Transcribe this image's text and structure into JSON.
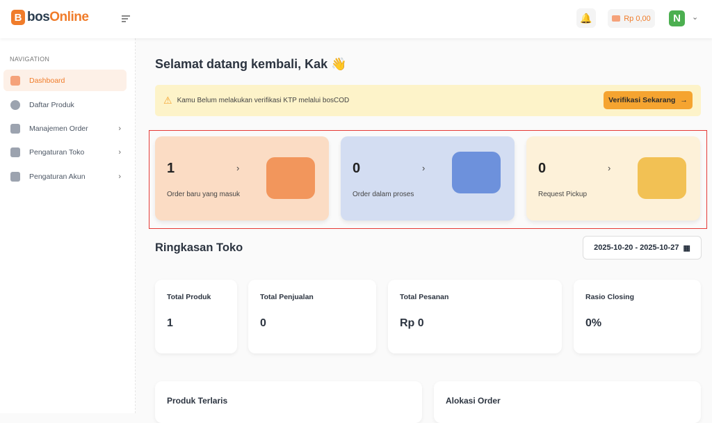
{
  "header": {
    "logo_mark": "B",
    "logo_prefix": "bos",
    "logo_suffix": "Online",
    "balance": "Rp 0,00",
    "avatar_initial": "N"
  },
  "sidebar": {
    "section_label": "NAVIGATION",
    "items": [
      {
        "label": "Dashboard",
        "active": true
      },
      {
        "label": "Daftar Produk"
      },
      {
        "label": "Manajemen Order",
        "has_submenu": true
      },
      {
        "label": "Pengaturan Toko",
        "has_submenu": true
      },
      {
        "label": "Pengaturan Akun",
        "has_submenu": true
      }
    ]
  },
  "main": {
    "greeting": "Selamat datang kembali, Kak 👋",
    "banner": {
      "text": "Kamu Belum melakukan verifikasi KTP melalui bosCOD",
      "button": "Verifikasi Sekarang"
    },
    "order_cards": [
      {
        "value": "1",
        "label": "Order baru yang masuk",
        "color": "#fbdcc4"
      },
      {
        "value": "0",
        "label": "Order dalam proses",
        "color": "#d3ddf2"
      },
      {
        "value": "0",
        "label": "Request Pickup",
        "color": "#fdf1d9"
      }
    ],
    "summary_title": "Ringkasan Toko",
    "date_range": "2025-10-20 - 2025-10-27",
    "stats": [
      {
        "title": "Total Produk",
        "value": "1"
      },
      {
        "title": "Total Penjualan",
        "value": "0"
      },
      {
        "title": "Total Pesanan",
        "value": "Rp 0"
      },
      {
        "title": "Rasio Closing",
        "value": "0%"
      }
    ],
    "bottom_cards": [
      {
        "title": "Produk Terlaris"
      },
      {
        "title": "Alokasi Order"
      }
    ]
  }
}
